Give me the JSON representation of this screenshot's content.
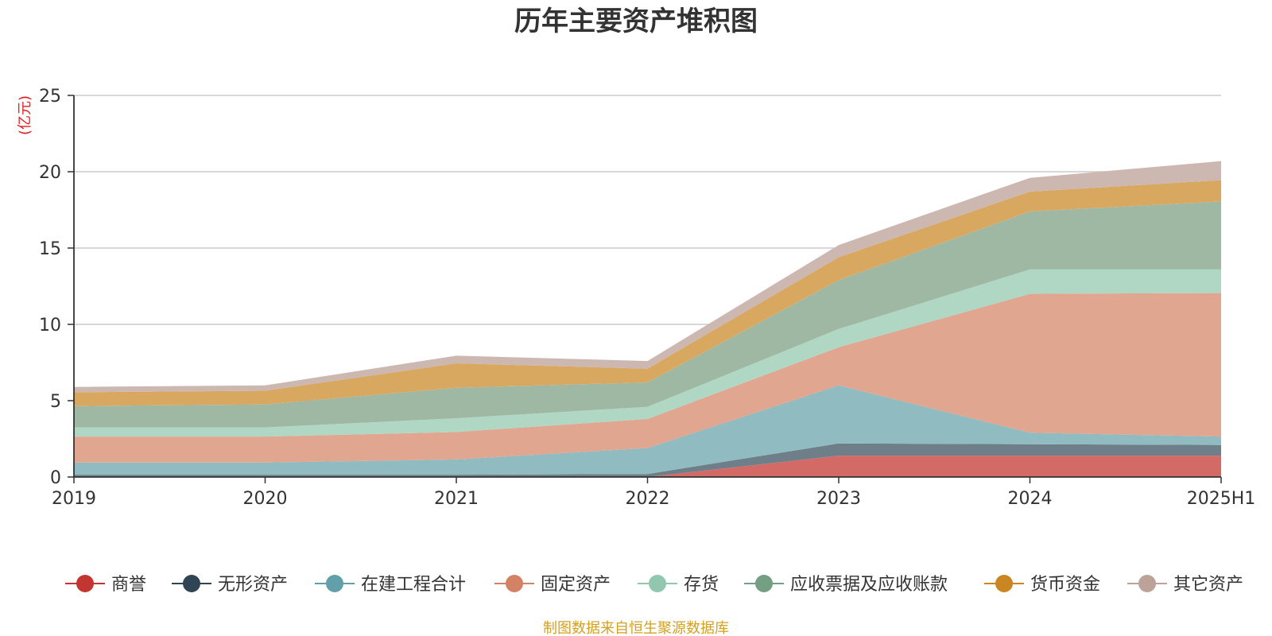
{
  "chart_data": {
    "type": "area",
    "stacked": true,
    "title": "历年主要资产堆积图",
    "unit_label": "(亿元)",
    "categories": [
      "2019",
      "2020",
      "2021",
      "2022",
      "2023",
      "2024",
      "2025H1"
    ],
    "yticks": [
      "0",
      "5",
      "10",
      "15",
      "20",
      "25"
    ],
    "ylim": [
      0,
      25
    ],
    "grid": true,
    "legend_position": "bottom",
    "series": [
      {
        "name": "商誉",
        "color": "#c23531",
        "fill": "#d46a66",
        "values": [
          0,
          0,
          0,
          0,
          1.4,
          1.4,
          1.4
        ]
      },
      {
        "name": "无形资产",
        "color": "#2f4554",
        "fill": "#6e7f8a",
        "values": [
          0.15,
          0.15,
          0.15,
          0.2,
          0.8,
          0.75,
          0.7
        ]
      },
      {
        "name": "在建工程合计",
        "color": "#61a0a8",
        "fill": "#90bbc1",
        "values": [
          0.8,
          0.8,
          1.0,
          1.7,
          3.8,
          0.75,
          0.55
        ]
      },
      {
        "name": "固定资产",
        "color": "#d48265",
        "fill": "#e0a690",
        "values": [
          1.7,
          1.7,
          1.8,
          1.9,
          2.5,
          9.1,
          9.4
        ]
      },
      {
        "name": "存货",
        "color": "#91c7ae",
        "fill": "#b0d7c4",
        "values": [
          0.6,
          0.6,
          0.9,
          0.8,
          1.2,
          1.6,
          1.55
        ]
      },
      {
        "name": "应收票据及应收账款",
        "color": "#749f83",
        "fill": "#9eb8a4",
        "values": [
          1.4,
          1.5,
          2.0,
          1.6,
          3.2,
          3.8,
          4.45
        ]
      },
      {
        "name": "货币资金",
        "color": "#ca8622",
        "fill": "#d9a860",
        "values": [
          0.9,
          0.9,
          1.6,
          0.9,
          1.5,
          1.3,
          1.4
        ]
      },
      {
        "name": "其它资产",
        "color": "#bda29a",
        "fill": "#cdb7b1",
        "values": [
          0.35,
          0.35,
          0.5,
          0.5,
          0.8,
          0.9,
          1.25
        ]
      }
    ],
    "source_note": "制图数据来自恒生聚源数据库"
  }
}
